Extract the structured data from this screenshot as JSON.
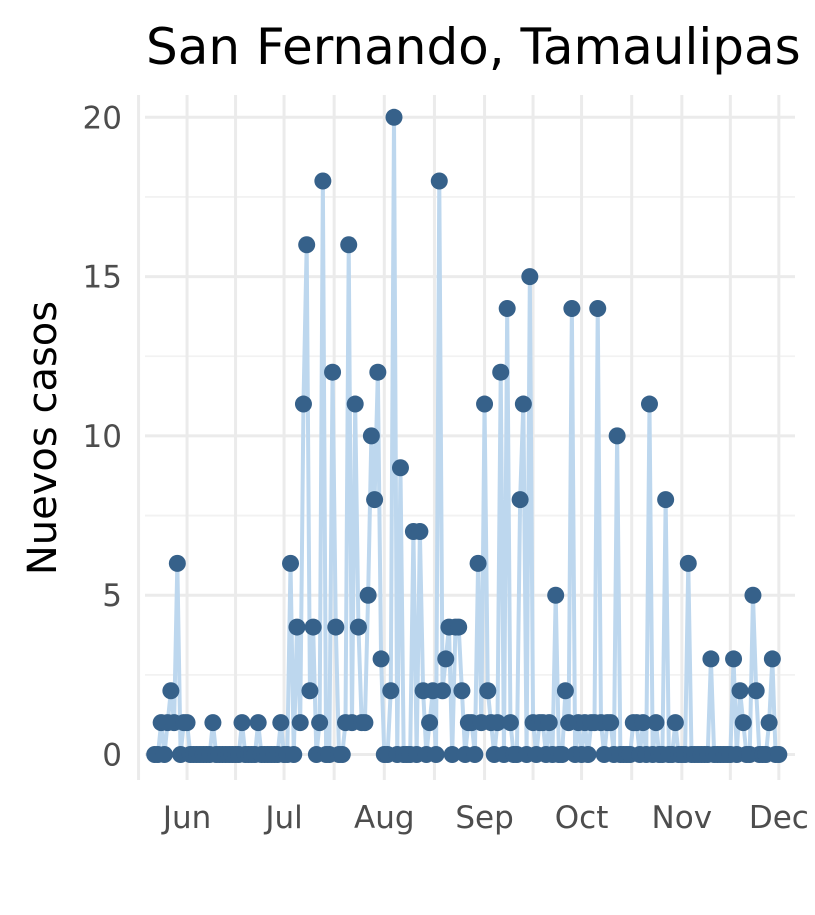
{
  "chart_data": {
    "type": "line",
    "title": "San Fernando, Tamaulipas",
    "xlabel": "",
    "ylabel": "Nuevos casos",
    "x_axis_type": "date",
    "x_start": "2020-05-22",
    "xlim": [
      "2020-05-19",
      "2020-12-06"
    ],
    "ylim": [
      -0.8,
      20.7
    ],
    "yticks": [
      0,
      5,
      10,
      15,
      20
    ],
    "x_ticks": [
      {
        "label": "Jun",
        "date": "2020-06-01"
      },
      {
        "label": "Jul",
        "date": "2020-07-01"
      },
      {
        "label": "Aug",
        "date": "2020-08-01"
      },
      {
        "label": "Sep",
        "date": "2020-09-01"
      },
      {
        "label": "Oct",
        "date": "2020-10-01"
      },
      {
        "label": "Nov",
        "date": "2020-11-01"
      },
      {
        "label": "Dec",
        "date": "2020-12-01"
      }
    ],
    "grid": true,
    "line_color": "#bdd7ee",
    "point_color": "#36618a",
    "series": [
      {
        "values": [
          0,
          0,
          1,
          0,
          1,
          2,
          1,
          6,
          0,
          1,
          1,
          0,
          0,
          0,
          0,
          0,
          0,
          0,
          1,
          0,
          0,
          0,
          0,
          0,
          0,
          0,
          0,
          1,
          0,
          0,
          0,
          0,
          1,
          0,
          0,
          0,
          0,
          0,
          0,
          1,
          0,
          0,
          6,
          0,
          4,
          1,
          11,
          16,
          2,
          4,
          0,
          1,
          18,
          0,
          0,
          12,
          4,
          0,
          0,
          1,
          16,
          1,
          11,
          4,
          1,
          1,
          5,
          10,
          8,
          12,
          3,
          0,
          0,
          2,
          20,
          0,
          9,
          0,
          0,
          0,
          7,
          0,
          7,
          2,
          0,
          1,
          2,
          0,
          18,
          2,
          3,
          4,
          0,
          4,
          4,
          2,
          0,
          1,
          1,
          0,
          6,
          1,
          11,
          2,
          1,
          0,
          1,
          12,
          0,
          14,
          1,
          0,
          0,
          8,
          11,
          0,
          15,
          1,
          0,
          1,
          1,
          0,
          1,
          0,
          5,
          0,
          0,
          2,
          1,
          14,
          0,
          1,
          0,
          1,
          0,
          1,
          1,
          14,
          1,
          0,
          1,
          1,
          0,
          10,
          0,
          0,
          0,
          0,
          1,
          1,
          0,
          1,
          0,
          11,
          0,
          1,
          0,
          0,
          8,
          0,
          0,
          1,
          0,
          0,
          0,
          6,
          0,
          0,
          0,
          0,
          0,
          0,
          3,
          0,
          0,
          0,
          0,
          0,
          0,
          3,
          0,
          2,
          1,
          0,
          0,
          5,
          2,
          0,
          0,
          0,
          1,
          3,
          0,
          0
        ]
      }
    ]
  }
}
